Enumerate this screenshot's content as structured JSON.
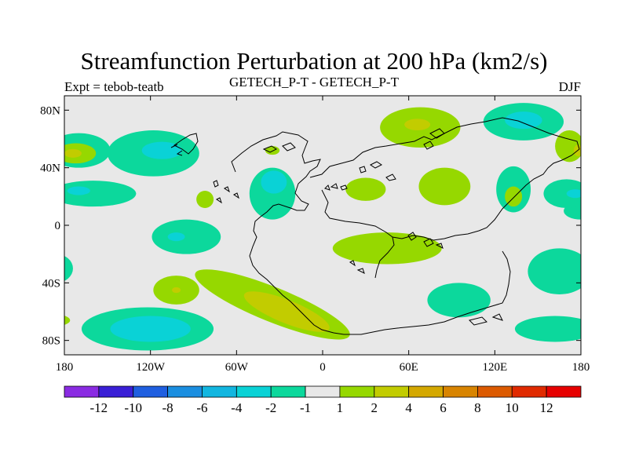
{
  "title": "Streamfunction Perturbation at 200 hPa (km2/s)",
  "subtitle_left": "Expt = tebob-teatb",
  "subtitle_center": "GETECH_P-T - GETECH_P-T",
  "subtitle_right": "DJF",
  "map": {
    "projection": "cylindrical equidistant",
    "lon_range": [
      -180,
      180
    ],
    "lat_range": [
      -90,
      90
    ],
    "background_color": "#e8e8e8",
    "lat_ticks": [
      {
        "value": 80,
        "label": "80N"
      },
      {
        "value": 40,
        "label": "40N"
      },
      {
        "value": 0,
        "label": "0"
      },
      {
        "value": -40,
        "label": "40S"
      },
      {
        "value": -80,
        "label": "80S"
      }
    ],
    "lon_ticks": [
      {
        "value": -180,
        "label": "180"
      },
      {
        "value": -120,
        "label": "120W"
      },
      {
        "value": -60,
        "label": "60W"
      },
      {
        "value": 0,
        "label": "0"
      },
      {
        "value": 60,
        "label": "60E"
      },
      {
        "value": 120,
        "label": "120E"
      },
      {
        "value": 180,
        "label": "180"
      }
    ]
  },
  "colorbar": {
    "boundaries": [
      "-12",
      "-10",
      "-8",
      "-6",
      "-4",
      "-2",
      "-1",
      "1",
      "2",
      "4",
      "6",
      "8",
      "10",
      "12"
    ],
    "colors": [
      "#8a2be2",
      "#3a1fd6",
      "#1f5fe0",
      "#1a8ee0",
      "#12b6e0",
      "#0ad2d6",
      "#0cd89c",
      "#e8e8e8",
      "#96d800",
      "#c2cc00",
      "#d4a800",
      "#d88400",
      "#dc5a00",
      "#e02a00",
      "#e60000"
    ]
  },
  "contour_regions": [
    {
      "level": "-2",
      "color": "#0cd89c",
      "lon": -170,
      "lat": 52,
      "rx": 22,
      "ry": 12
    },
    {
      "level": "2",
      "color": "#96d800",
      "lon": -172,
      "lat": 50,
      "rx": 14,
      "ry": 7
    },
    {
      "level": "4",
      "color": "#c2cc00",
      "lon": -174,
      "lat": 50,
      "rx": 6,
      "ry": 3
    },
    {
      "level": "-2",
      "color": "#0cd89c",
      "lon": -118,
      "lat": 50,
      "rx": 32,
      "ry": 16
    },
    {
      "level": "-4",
      "color": "#0ad2d6",
      "lon": -112,
      "lat": 52,
      "rx": 14,
      "ry": 6
    },
    {
      "level": "-2",
      "color": "#0cd89c",
      "lon": -160,
      "lat": 22,
      "rx": 30,
      "ry": 9
    },
    {
      "level": "-4",
      "color": "#0ad2d6",
      "lon": -170,
      "lat": 24,
      "rx": 8,
      "ry": 3
    },
    {
      "level": "2",
      "color": "#96d800",
      "lon": -82,
      "lat": 18,
      "rx": 6,
      "ry": 6
    },
    {
      "level": "-2",
      "color": "#0cd89c",
      "lon": -35,
      "lat": 22,
      "rx": 16,
      "ry": 18
    },
    {
      "level": "-4",
      "color": "#0ad2d6",
      "lon": -34,
      "lat": 30,
      "rx": 9,
      "ry": 8
    },
    {
      "level": "2",
      "color": "#96d800",
      "lon": -35,
      "lat": 52,
      "rx": 5,
      "ry": 3
    },
    {
      "level": "-2",
      "color": "#0cd89c",
      "lon": -95,
      "lat": -8,
      "rx": 24,
      "ry": 12
    },
    {
      "level": "-4",
      "color": "#0ad2d6",
      "lon": -102,
      "lat": -8,
      "rx": 6,
      "ry": 3
    },
    {
      "level": "-2",
      "color": "#0cd89c",
      "lon": -186,
      "lat": -30,
      "rx": 12,
      "ry": 10
    },
    {
      "level": "-2",
      "color": "#0cd89c",
      "lon": 180,
      "lat": 10,
      "rx": 12,
      "ry": 6
    },
    {
      "level": "2",
      "color": "#96d800",
      "lon": -102,
      "lat": -45,
      "rx": 16,
      "ry": 10
    },
    {
      "level": "4",
      "color": "#c2cc00",
      "lon": -102,
      "lat": -45,
      "rx": 3,
      "ry": 2
    },
    {
      "level": "-2",
      "color": "#0cd89c",
      "lon": -122,
      "lat": -72,
      "rx": 46,
      "ry": 15
    },
    {
      "level": "-4",
      "color": "#0ad2d6",
      "lon": -120,
      "lat": -72,
      "rx": 28,
      "ry": 9
    },
    {
      "level": "2",
      "color": "#96d800",
      "lon": -186,
      "lat": -66,
      "rx": 10,
      "ry": 4
    },
    {
      "level": "2",
      "color": "#96d800",
      "lon": -35,
      "lat": -55,
      "rx": 58,
      "ry": 12,
      "rot": 22
    },
    {
      "level": "4",
      "color": "#c2cc00",
      "lon": -25,
      "lat": -60,
      "rx": 32,
      "ry": 8,
      "rot": 22
    },
    {
      "level": "2",
      "color": "#96d800",
      "lon": 30,
      "lat": 25,
      "rx": 14,
      "ry": 8
    },
    {
      "level": "2",
      "color": "#96d800",
      "lon": 85,
      "lat": 27,
      "rx": 18,
      "ry": 13
    },
    {
      "level": "2",
      "color": "#96d800",
      "lon": 45,
      "lat": -16,
      "rx": 38,
      "ry": 11
    },
    {
      "level": "2",
      "color": "#96d800",
      "lon": 68,
      "lat": 68,
      "rx": 28,
      "ry": 14
    },
    {
      "level": "4",
      "color": "#c2cc00",
      "lon": 66,
      "lat": 70,
      "rx": 9,
      "ry": 4
    },
    {
      "level": "-2",
      "color": "#0cd89c",
      "lon": 140,
      "lat": 72,
      "rx": 28,
      "ry": 13
    },
    {
      "level": "-4",
      "color": "#0ad2d6",
      "lon": 140,
      "lat": 73,
      "rx": 13,
      "ry": 6
    },
    {
      "level": "2",
      "color": "#96d800",
      "lon": 172,
      "lat": 55,
      "rx": 10,
      "ry": 11
    },
    {
      "level": "4",
      "color": "#c2cc00",
      "lon": 178,
      "lat": 52,
      "rx": 3,
      "ry": 4
    },
    {
      "level": "-2",
      "color": "#0cd89c",
      "lon": 133,
      "lat": 25,
      "rx": 12,
      "ry": 16
    },
    {
      "level": "2",
      "color": "#96d800",
      "lon": 133,
      "lat": 20,
      "rx": 6,
      "ry": 7
    },
    {
      "level": "-2",
      "color": "#0cd89c",
      "lon": 170,
      "lat": 22,
      "rx": 16,
      "ry": 10
    },
    {
      "level": "-4",
      "color": "#0ad2d6",
      "lon": 176,
      "lat": 22,
      "rx": 6,
      "ry": 3
    },
    {
      "level": "-2",
      "color": "#0cd89c",
      "lon": 165,
      "lat": -32,
      "rx": 22,
      "ry": 16
    },
    {
      "level": "-2",
      "color": "#0cd89c",
      "lon": 95,
      "lat": -52,
      "rx": 22,
      "ry": 12
    },
    {
      "level": "-2",
      "color": "#0cd89c",
      "lon": 162,
      "lat": -72,
      "rx": 28,
      "ry": 9
    }
  ]
}
